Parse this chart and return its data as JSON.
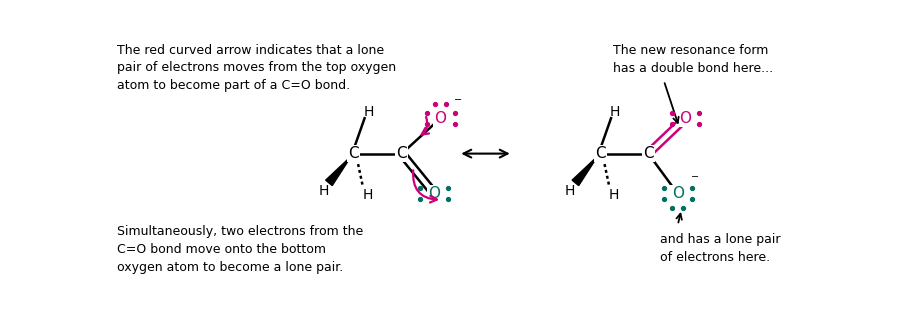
{
  "bg_color": "#ffffff",
  "text_color": "#000000",
  "magenta": "#cc007a",
  "teal": "#007060",
  "left_text_top": "The red curved arrow indicates that a lone\npair of electrons moves from the top oxygen\natom to become part of a C=O bond.",
  "left_text_bottom": "Simultaneously, two electrons from the\nC=O bond move onto the bottom\noxygen atom to become a lone pair.",
  "right_text_top": "The new resonance form\nhas a double bond here...",
  "right_text_bottom_label": "and has a lone pair\nof electrons here.",
  "fig_width": 9.08,
  "fig_height": 3.24,
  "dpi": 100
}
